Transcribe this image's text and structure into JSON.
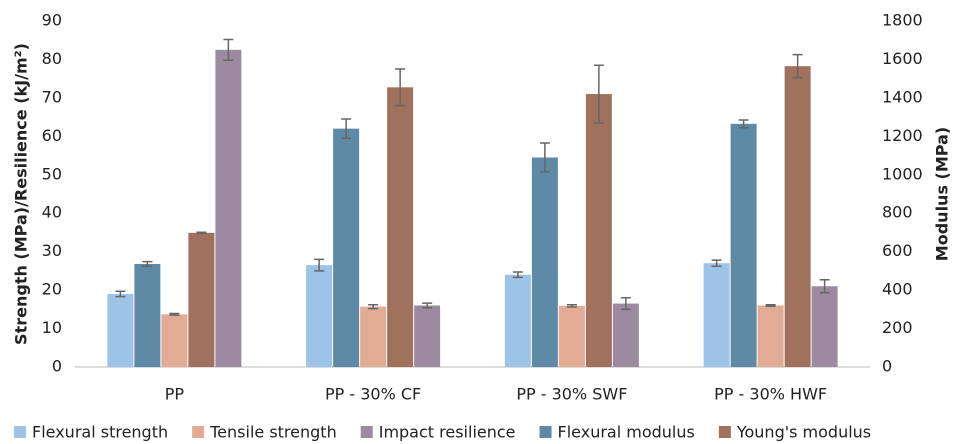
{
  "chart_data": {
    "type": "bar",
    "ylabel": "Strength (MPa)/Resilience (kJ/m²)",
    "y2label": "Modulus (MPa)",
    "categories": [
      "PP",
      "PP - 30% CF",
      "PP - 30% SWF",
      "PP - 30% HWF"
    ],
    "series": [
      {
        "name": "Flexural strength",
        "color": "#9dc3e6",
        "values": [
          19,
          26.5,
          24,
          27
        ],
        "errors": [
          0.7,
          1.5,
          0.7,
          0.8
        ]
      },
      {
        "name": "Tensile strength",
        "color": "#e2ab93",
        "values": [
          13.7,
          15.7,
          15.9,
          16
        ],
        "errors": [
          0.2,
          0.5,
          0.3,
          0.2
        ]
      },
      {
        "name": "Impact resilience",
        "color": "#9c8ba0",
        "values": [
          82.5,
          16,
          16.5,
          21
        ],
        "errors": [
          2.7,
          0.6,
          1.5,
          1.7
        ]
      },
      {
        "name": "Flexural modulus",
        "color": "#5e8aa6",
        "axis": "y2",
        "values": [
          536,
          1240,
          1090,
          1265
        ],
        "errors": [
          12,
          50,
          75,
          20
        ]
      },
      {
        "name": "Young's modulus",
        "color": "#a0725d",
        "axis": "y2",
        "values": [
          698,
          1455,
          1420,
          1565
        ],
        "errors": [
          3,
          95,
          150,
          60
        ]
      }
    ],
    "ylim": [
      0,
      90
    ],
    "yticks": [
      0,
      10,
      20,
      30,
      40,
      50,
      60,
      70,
      80,
      90
    ],
    "y2lim": [
      0,
      1800
    ],
    "y2ticks": [
      0,
      200,
      400,
      600,
      800,
      1000,
      1200,
      1400,
      1600,
      1800
    ],
    "grid": false,
    "legend": "bottom"
  }
}
